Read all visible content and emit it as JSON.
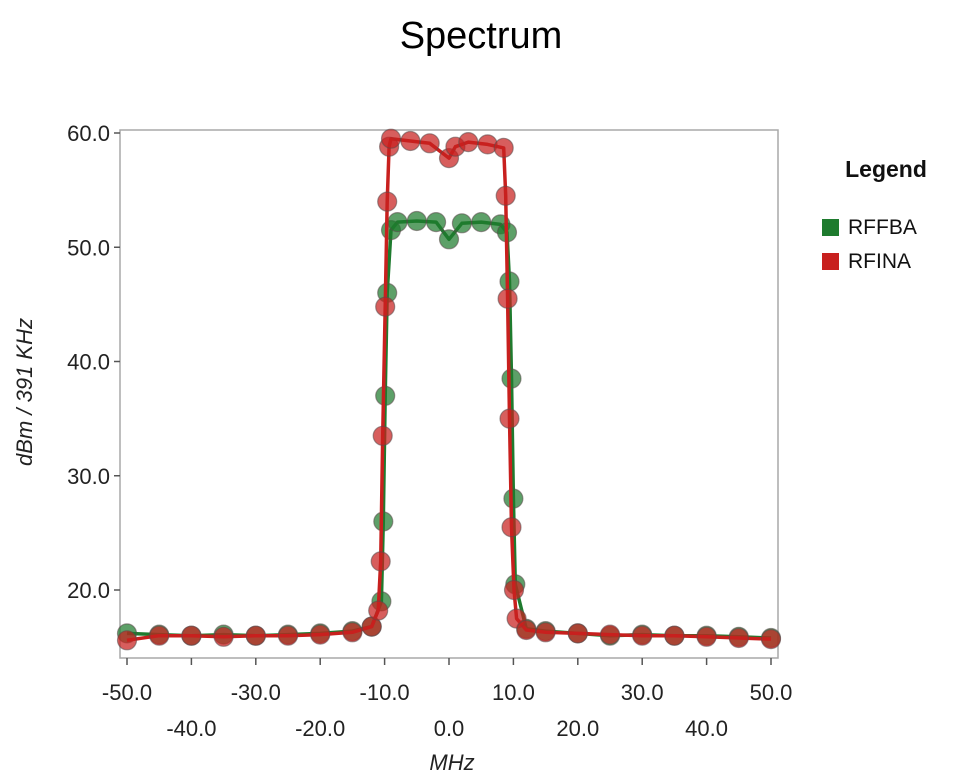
{
  "chart_data": {
    "type": "scatter",
    "title": "Spectrum",
    "xlabel": "MHz",
    "ylabel": "dBm / 391 KHz",
    "xlim": [
      -50,
      50
    ],
    "ylim": [
      15,
      60
    ],
    "x_ticks": [
      -50,
      -40,
      -30,
      -20,
      -10,
      0,
      10,
      20,
      30,
      40,
      50
    ],
    "x_tick_labels": [
      "-50.0",
      "-40.0",
      "-30.0",
      "-20.0",
      "-10.0",
      "0.0",
      "10.0",
      "20.0",
      "30.0",
      "40.0",
      "50.0"
    ],
    "y_ticks": [
      20,
      30,
      40,
      50,
      60
    ],
    "y_tick_labels": [
      "20.0",
      "30.0",
      "40.0",
      "50.0",
      "60.0"
    ],
    "legend": {
      "title": "Legend",
      "position": "right"
    },
    "series": [
      {
        "name": "RFFBA",
        "color": "#1e7b2e",
        "points": [
          [
            -50,
            16.2
          ],
          [
            -45,
            16.1
          ],
          [
            -40,
            16.0
          ],
          [
            -35,
            16.1
          ],
          [
            -30,
            16.0
          ],
          [
            -25,
            16.1
          ],
          [
            -20,
            16.2
          ],
          [
            -15,
            16.4
          ],
          [
            -12,
            16.8
          ],
          [
            -10.5,
            19.0
          ],
          [
            -10.2,
            26.0
          ],
          [
            -9.9,
            37.0
          ],
          [
            -9.6,
            46.0
          ],
          [
            -9.0,
            51.5
          ],
          [
            -8,
            52.2
          ],
          [
            -5,
            52.3
          ],
          [
            -2,
            52.2
          ],
          [
            0,
            50.7
          ],
          [
            2,
            52.1
          ],
          [
            5,
            52.2
          ],
          [
            8,
            52.0
          ],
          [
            9.0,
            51.3
          ],
          [
            9.4,
            47.0
          ],
          [
            9.7,
            38.5
          ],
          [
            10.0,
            28.0
          ],
          [
            10.3,
            20.5
          ],
          [
            12,
            16.6
          ],
          [
            15,
            16.4
          ],
          [
            20,
            16.2
          ],
          [
            25,
            16.0
          ],
          [
            30,
            16.1
          ],
          [
            35,
            16.0
          ],
          [
            40,
            16.0
          ],
          [
            45,
            15.9
          ],
          [
            50,
            15.8
          ]
        ]
      },
      {
        "name": "RFINA",
        "color": "#c8201e",
        "points": [
          [
            -50,
            15.6
          ],
          [
            -45,
            16.0
          ],
          [
            -40,
            16.0
          ],
          [
            -35,
            15.9
          ],
          [
            -30,
            16.0
          ],
          [
            -25,
            16.0
          ],
          [
            -20,
            16.1
          ],
          [
            -15,
            16.3
          ],
          [
            -12,
            16.8
          ],
          [
            -11,
            18.2
          ],
          [
            -10.6,
            22.5
          ],
          [
            -10.3,
            33.5
          ],
          [
            -9.9,
            44.8
          ],
          [
            -9.6,
            54.0
          ],
          [
            -9.3,
            58.8
          ],
          [
            -9.0,
            59.5
          ],
          [
            -6,
            59.3
          ],
          [
            -3,
            59.1
          ],
          [
            0,
            57.8
          ],
          [
            1,
            58.8
          ],
          [
            3,
            59.2
          ],
          [
            6,
            59.0
          ],
          [
            8.5,
            58.7
          ],
          [
            8.8,
            54.5
          ],
          [
            9.1,
            45.5
          ],
          [
            9.4,
            35.0
          ],
          [
            9.7,
            25.5
          ],
          [
            10.1,
            20.0
          ],
          [
            10.5,
            17.5
          ],
          [
            12,
            16.5
          ],
          [
            15,
            16.3
          ],
          [
            20,
            16.2
          ],
          [
            25,
            16.1
          ],
          [
            30,
            16.0
          ],
          [
            35,
            16.0
          ],
          [
            40,
            15.9
          ],
          [
            45,
            15.8
          ],
          [
            50,
            15.7
          ]
        ]
      }
    ]
  }
}
